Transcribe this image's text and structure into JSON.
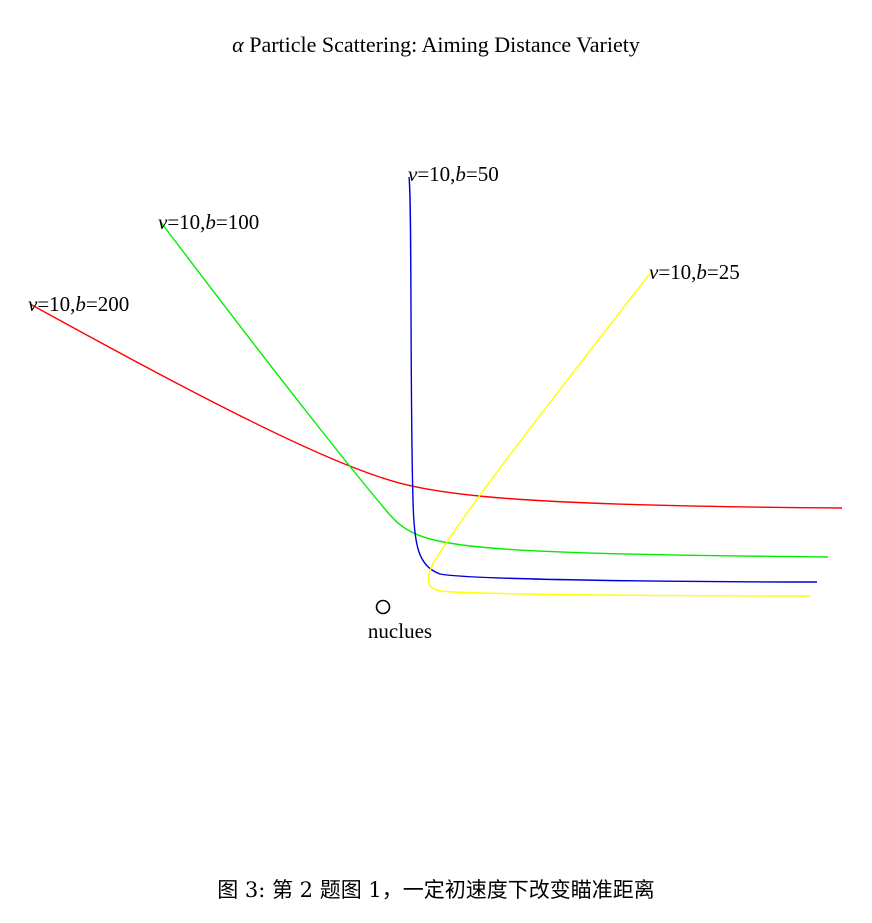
{
  "title": {
    "prefix": "α",
    "text": "Particle Scattering: Aiming Distance Variety"
  },
  "nucleus": {
    "label": "nuclues"
  },
  "trajectories": [
    {
      "v_sym": "v",
      "v_val": "=10,",
      "b_sym": "b",
      "b_val": "=200",
      "color": "#ff0000"
    },
    {
      "v_sym": "v",
      "v_val": "=10,",
      "b_sym": "b",
      "b_val": "=100",
      "color": "#00ee00"
    },
    {
      "v_sym": "v",
      "v_val": "=10,",
      "b_sym": "b",
      "b_val": "=50",
      "color": "#0000dd"
    },
    {
      "v_sym": "v",
      "v_val": "=10,",
      "b_sym": "b",
      "b_val": "=25",
      "color": "#ffff00"
    }
  ],
  "caption": "图 3: 第 2 题图 1，一定初速度下改变瞄准距离"
}
